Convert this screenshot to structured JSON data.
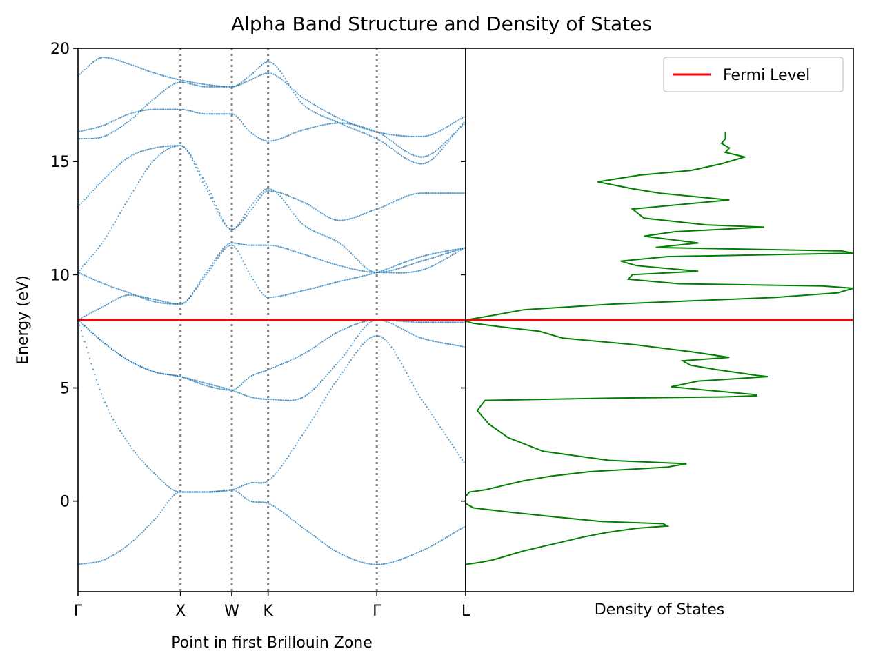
{
  "figure": {
    "title": "Alpha Band Structure and Density of States"
  },
  "chart_data": [
    {
      "type": "scatter",
      "panel": "band-structure",
      "xlabel": "Point in first Brillouin Zone",
      "ylabel": "Energy (eV)",
      "ylim": [
        -4,
        20
      ],
      "yticks": [
        0,
        5,
        10,
        15,
        20
      ],
      "grid": false,
      "kpoints": [
        {
          "label": "Γ",
          "pos": 0.0
        },
        {
          "label": "X",
          "pos": 1.0
        },
        {
          "label": "W",
          "pos": 1.5
        },
        {
          "label": "K",
          "pos": 1.854
        },
        {
          "label": "Γ",
          "pos": 2.914
        },
        {
          "label": "L",
          "pos": 3.78
        }
      ],
      "marker_color": "#1f77b4",
      "series": [
        {
          "x": [
            0,
            0.25,
            0.5,
            0.75,
            1.0,
            1.25,
            1.5,
            1.68,
            1.854,
            2.2,
            2.55,
            2.914,
            3.35,
            3.78
          ],
          "y": [
            -2.8,
            -2.6,
            -1.9,
            -0.8,
            0.4,
            0.4,
            0.5,
            0.0,
            -0.1,
            -1.2,
            -2.3,
            -2.8,
            -2.2,
            -1.1
          ]
        },
        {
          "x": [
            0,
            0.25,
            0.5,
            0.75,
            1.0,
            1.25,
            1.5,
            1.68,
            1.854,
            2.2,
            2.55,
            2.914,
            3.35,
            3.78
          ],
          "y": [
            8.0,
            4.5,
            2.5,
            1.2,
            0.4,
            0.4,
            0.5,
            0.8,
            0.9,
            3.0,
            5.5,
            7.3,
            4.5,
            1.6
          ]
        },
        {
          "x": [
            0,
            0.25,
            0.5,
            0.75,
            1.0,
            1.25,
            1.5,
            1.68,
            1.854,
            2.2,
            2.55,
            2.914,
            3.35,
            3.78
          ],
          "y": [
            8.0,
            7.0,
            6.2,
            5.7,
            5.5,
            5.2,
            4.9,
            4.6,
            4.5,
            4.6,
            6.2,
            8.0,
            7.2,
            6.8
          ]
        },
        {
          "x": [
            0,
            0.25,
            0.5,
            0.75,
            1.0,
            1.25,
            1.5,
            1.68,
            1.854,
            2.2,
            2.55,
            2.914,
            3.35,
            3.78
          ],
          "y": [
            8.0,
            7.0,
            6.2,
            5.7,
            5.5,
            5.1,
            4.9,
            5.5,
            5.8,
            6.5,
            7.5,
            8.0,
            7.9,
            7.9
          ]
        },
        {
          "x": [
            0,
            0.25,
            0.5,
            0.75,
            1.0,
            1.25,
            1.5,
            1.68,
            1.854,
            2.2,
            2.55,
            2.914,
            3.35,
            3.78
          ],
          "y": [
            8.0,
            8.6,
            9.1,
            8.9,
            8.7,
            10.0,
            11.3,
            10.0,
            9.0,
            9.3,
            9.7,
            10.1,
            10.8,
            11.2
          ]
        },
        {
          "x": [
            0,
            0.25,
            0.5,
            0.75,
            1.0,
            1.25,
            1.5,
            1.68,
            1.854,
            2.2,
            2.55,
            2.914,
            3.35,
            3.78
          ],
          "y": [
            10.1,
            9.6,
            9.2,
            8.8,
            8.7,
            10.1,
            11.4,
            11.3,
            11.3,
            10.9,
            10.4,
            10.1,
            10.6,
            11.2
          ]
        },
        {
          "x": [
            0,
            0.25,
            0.5,
            0.75,
            1.0,
            1.25,
            1.5,
            1.68,
            1.854,
            2.2,
            2.55,
            2.914,
            3.35,
            3.78
          ],
          "y": [
            10.1,
            11.5,
            13.4,
            15.1,
            15.7,
            14.0,
            12.0,
            13.0,
            13.8,
            12.2,
            11.4,
            10.1,
            10.2,
            11.2
          ]
        },
        {
          "x": [
            0,
            0.25,
            0.5,
            0.75,
            1.0,
            1.25,
            1.5,
            1.68,
            1.854,
            2.2,
            2.55,
            2.914,
            3.35,
            3.78
          ],
          "y": [
            13.0,
            14.2,
            15.2,
            15.6,
            15.7,
            13.8,
            12.0,
            12.8,
            13.7,
            13.2,
            12.4,
            12.9,
            13.6,
            13.6
          ]
        },
        {
          "x": [
            0,
            0.25,
            0.5,
            0.75,
            1.0,
            1.25,
            1.5,
            1.68,
            1.854,
            2.2,
            2.55,
            2.914,
            3.35,
            3.78
          ],
          "y": [
            16.3,
            16.6,
            17.1,
            17.3,
            17.3,
            17.1,
            17.1,
            16.3,
            15.9,
            16.4,
            16.7,
            16.3,
            15.2,
            16.7
          ]
        },
        {
          "x": [
            0,
            0.25,
            0.5,
            0.75,
            1.0,
            1.25,
            1.5,
            1.68,
            1.854,
            2.2,
            2.55,
            2.914,
            3.35,
            3.78
          ],
          "y": [
            16.0,
            16.1,
            16.8,
            17.8,
            18.5,
            18.3,
            18.3,
            18.8,
            19.4,
            17.5,
            16.7,
            16.0,
            14.9,
            16.8
          ]
        },
        {
          "x": [
            0,
            0.25,
            0.5,
            0.75,
            1.0,
            1.25,
            1.5,
            1.68,
            1.854,
            2.2,
            2.55,
            2.914,
            3.35,
            3.78
          ],
          "y": [
            18.8,
            19.6,
            19.3,
            18.9,
            18.6,
            18.4,
            18.3,
            18.6,
            18.9,
            17.8,
            16.9,
            16.3,
            16.1,
            17.0
          ]
        }
      ]
    },
    {
      "type": "line",
      "panel": "density-of-states",
      "xlabel": "Density of States",
      "ylim": [
        -4,
        20
      ],
      "grid": false,
      "line_color": "#008000",
      "energy": [
        -3.9,
        -2.8,
        -2.7,
        -2.6,
        -2.4,
        -2.2,
        -2.0,
        -1.8,
        -1.6,
        -1.4,
        -1.2,
        -1.1,
        -1.0,
        -0.9,
        -0.7,
        -0.5,
        -0.3,
        -0.1,
        0.2,
        0.4,
        0.5,
        0.7,
        0.9,
        1.1,
        1.3,
        1.5,
        1.65,
        1.8,
        2.2,
        2.8,
        3.4,
        4.0,
        4.45,
        4.55,
        4.6,
        4.65,
        4.7,
        4.9,
        5.05,
        5.3,
        5.5,
        5.55,
        5.8,
        6.0,
        6.2,
        6.35,
        6.6,
        6.9,
        7.2,
        7.5,
        7.7,
        7.85,
        7.95,
        8.0,
        8.2,
        8.45,
        8.7,
        9.0,
        9.2,
        9.4,
        9.5,
        9.6,
        9.8,
        10.0,
        10.15,
        10.4,
        10.6,
        10.8,
        10.95,
        11.05,
        11.2,
        11.4,
        11.7,
        11.9,
        12.1,
        12.2,
        12.5,
        12.9,
        13.3,
        13.6,
        13.8,
        14.1,
        14.4,
        14.6,
        14.9,
        15.2,
        15.4,
        15.6,
        15.8,
        16.0,
        16.2,
        16.3
      ],
      "dos": [
        0.0,
        0.0,
        0.04,
        0.07,
        0.11,
        0.15,
        0.2,
        0.25,
        0.3,
        0.36,
        0.44,
        0.52,
        0.51,
        0.35,
        0.23,
        0.12,
        0.02,
        0.0,
        0.0,
        0.01,
        0.05,
        0.1,
        0.15,
        0.22,
        0.32,
        0.52,
        0.57,
        0.37,
        0.2,
        0.11,
        0.06,
        0.03,
        0.05,
        0.38,
        0.66,
        0.75,
        0.75,
        0.62,
        0.53,
        0.6,
        0.78,
        0.75,
        0.65,
        0.58,
        0.56,
        0.68,
        0.58,
        0.44,
        0.25,
        0.19,
        0.09,
        0.02,
        0.0,
        0.0,
        0.07,
        0.15,
        0.38,
        0.8,
        0.96,
        1.0,
        0.92,
        0.55,
        0.42,
        0.43,
        0.6,
        0.44,
        0.4,
        0.52,
        1.0,
        0.97,
        0.49,
        0.6,
        0.46,
        0.54,
        0.77,
        0.62,
        0.46,
        0.43,
        0.68,
        0.5,
        0.43,
        0.34,
        0.45,
        0.58,
        0.66,
        0.72,
        0.67,
        0.68,
        0.66,
        0.67,
        0.67,
        0.67
      ]
    }
  ],
  "legend": {
    "position": "top-right",
    "label": "Fermi Level",
    "color": "#ff0000"
  },
  "fermi_level": 8.0,
  "kpath_line_color": "#808080"
}
